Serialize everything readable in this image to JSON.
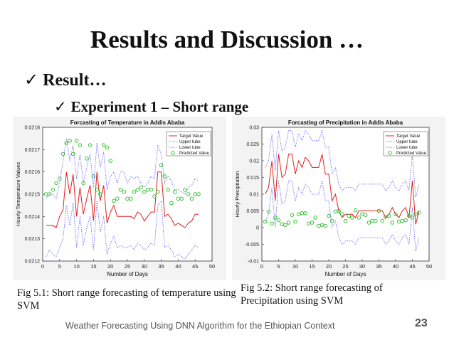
{
  "slide": {
    "title": "Results and Discussion …",
    "bullet1": "Result…",
    "bullet2": "Experiment 1 – Short range",
    "check": "✓",
    "caption1": "Fig 5.1: Short range forecasting of temperature using SVM",
    "caption2": "Fig 5.2: Short range forecasting of Precipitation using SVM",
    "footer": "Weather Forecasting Using DNN Algorithm for the Ethiopian Context",
    "page_number": "23"
  },
  "colors": {
    "target": "#e02020",
    "upper": "#4a4aff",
    "lower": "#4a4aff",
    "predicted": "#22bb22"
  },
  "chart_data": [
    {
      "type": "line",
      "title": "Forcasting of Temperature in Addis Ababa",
      "xlabel": "Number of Days",
      "ylabel": "Hourly Temperature Values",
      "xlim": [
        0,
        50
      ],
      "ylim": [
        0.0212,
        0.0218
      ],
      "xticks": [
        "0",
        "5",
        "10",
        "15",
        "20",
        "25",
        "30",
        "35",
        "40",
        "45",
        "50"
      ],
      "yticks": [
        "0.0212",
        "0.0213",
        "0.0214",
        "0.0215",
        "0.0216",
        "0.0217",
        "0.0218"
      ],
      "legend_position": "top-right",
      "grid": false,
      "x": [
        1,
        2,
        3,
        4,
        5,
        6,
        7,
        8,
        9,
        10,
        11,
        12,
        13,
        14,
        15,
        16,
        17,
        18,
        19,
        20,
        21,
        22,
        23,
        24,
        25,
        26,
        27,
        28,
        29,
        30,
        31,
        32,
        33,
        34,
        35,
        36,
        37,
        38,
        39,
        40,
        41,
        42,
        43,
        44,
        45,
        46
      ],
      "series": [
        {
          "name": "Target Value",
          "style": "solid",
          "values": [
            0.02136,
            0.02136,
            0.02136,
            0.02135,
            0.0214,
            0.02143,
            0.0216,
            0.0215,
            0.02159,
            0.0214,
            0.02153,
            0.02141,
            0.02148,
            0.02154,
            0.02138,
            0.0216,
            0.02147,
            0.02154,
            0.02137,
            0.02142,
            0.02145,
            0.0214,
            0.0214,
            0.0214,
            0.0214,
            0.0214,
            0.02139,
            0.02142,
            0.02141,
            0.02138,
            0.0214,
            0.02142,
            0.02142,
            0.0216,
            0.0216,
            0.0214,
            0.02141,
            0.02139,
            0.02136,
            0.02137,
            0.02136,
            0.02135,
            0.02137,
            0.02138,
            0.02141,
            0.02141
          ]
        },
        {
          "name": "Upper tube",
          "style": "dotted",
          "values": [
            0.02148,
            0.0215,
            0.0215,
            0.02148,
            0.02155,
            0.02165,
            0.02175,
            0.02165,
            0.02172,
            0.02157,
            0.02168,
            0.02155,
            0.02162,
            0.02168,
            0.02153,
            0.02173,
            0.02162,
            0.02169,
            0.02152,
            0.02158,
            0.0216,
            0.02155,
            0.0216,
            0.0216,
            0.02155,
            0.02158,
            0.02157,
            0.02158,
            0.02155,
            0.02153,
            0.02155,
            0.02158,
            0.02157,
            0.02172,
            0.02168,
            0.02155,
            0.02158,
            0.02156,
            0.02152,
            0.02152,
            0.02151,
            0.0215,
            0.02153,
            0.02154,
            0.02157,
            0.02156
          ]
        },
        {
          "name": "Lower tube",
          "style": "dotted",
          "values": [
            0.02122,
            0.02125,
            0.02123,
            0.02122,
            0.02126,
            0.0213,
            0.02145,
            0.02136,
            0.02146,
            0.02126,
            0.0214,
            0.02127,
            0.02135,
            0.0214,
            0.02125,
            0.02147,
            0.02133,
            0.0214,
            0.02123,
            0.02128,
            0.02131,
            0.02126,
            0.02127,
            0.02126,
            0.02126,
            0.02127,
            0.02125,
            0.02128,
            0.02127,
            0.02125,
            0.02126,
            0.02128,
            0.02127,
            0.02145,
            0.02147,
            0.02126,
            0.02127,
            0.02125,
            0.02122,
            0.02123,
            0.02122,
            0.02121,
            0.02123,
            0.02125,
            0.02127,
            0.02126
          ]
        },
        {
          "name": "Predicted Value",
          "style": "circle",
          "values": [
            0.0215,
            0.0215,
            0.02152,
            0.02155,
            0.02157,
            0.02168,
            0.02173,
            0.02174,
            0.02168,
            0.02174,
            0.02172,
            0.02155,
            0.02166,
            0.02172,
            0.02158,
            0.02152,
            0.0215,
            0.02172,
            0.02171,
            0.02165,
            0.02147,
            0.02148,
            0.02152,
            0.02151,
            0.02148,
            0.02148,
            0.02151,
            0.02152,
            0.02153,
            0.02151,
            0.02152,
            0.02152,
            0.02149,
            0.02151,
            0.02163,
            0.02158,
            0.02152,
            0.02146,
            0.02151,
            0.02148,
            0.02148,
            0.02152,
            0.0215,
            0.02148,
            0.0215,
            0.0215
          ]
        }
      ]
    },
    {
      "type": "line",
      "title": "Forcasting of Precipitation in Addis Ababa",
      "xlabel": "Number of Days",
      "ylabel": "Hourly Precipitation",
      "xlim": [
        0,
        50
      ],
      "ylim": [
        -0.01,
        0.03
      ],
      "xticks": [
        "0",
        "5",
        "10",
        "15",
        "20",
        "25",
        "30",
        "35",
        "40",
        "45",
        "50"
      ],
      "yticks": [
        "-0.01",
        "-0.005",
        "0",
        "0.005",
        "0.01",
        "0.015",
        "0.02",
        "0.025",
        "0.03"
      ],
      "legend_position": "top-right",
      "grid": false,
      "x": [
        1,
        2,
        3,
        4,
        5,
        6,
        7,
        8,
        9,
        10,
        11,
        12,
        13,
        14,
        15,
        16,
        17,
        18,
        19,
        20,
        21,
        22,
        23,
        24,
        25,
        26,
        27,
        28,
        29,
        30,
        31,
        32,
        33,
        34,
        35,
        36,
        37,
        38,
        39,
        40,
        41,
        42,
        43,
        44,
        45,
        46,
        47
      ],
      "series": [
        {
          "name": "Target Value",
          "style": "solid",
          "values": [
            0.01,
            0.012,
            0.02,
            0.008,
            0.022,
            0.015,
            0.016,
            0.022,
            0.022,
            0.016,
            0.02,
            0.018,
            0.021,
            0.02,
            0.018,
            0.018,
            0.018,
            0.022,
            0.016,
            0.016,
            0.008,
            0.01,
            0.005,
            0.003,
            0.004,
            0.004,
            0.004,
            0.003,
            0.005,
            0.005,
            0.005,
            0.005,
            0.005,
            0.005,
            0.005,
            0.005,
            0.003,
            0.004,
            0.006,
            0.004,
            0.003,
            0.005,
            0.006,
            0.003,
            0.014,
            0.001,
            0.005
          ]
        },
        {
          "name": "Upper tube",
          "style": "dotted",
          "values": [
            0.018,
            0.02,
            0.028,
            0.017,
            0.029,
            0.023,
            0.024,
            0.029,
            0.029,
            0.024,
            0.028,
            0.026,
            0.029,
            0.028,
            0.026,
            0.026,
            0.026,
            0.029,
            0.024,
            0.024,
            0.016,
            0.018,
            0.013,
            0.011,
            0.012,
            0.012,
            0.012,
            0.011,
            0.013,
            0.013,
            0.013,
            0.013,
            0.013,
            0.013,
            0.013,
            0.013,
            0.011,
            0.012,
            0.014,
            0.012,
            0.011,
            0.013,
            0.014,
            0.011,
            0.022,
            0.009,
            0.013
          ]
        },
        {
          "name": "Lower tube",
          "style": "dotted",
          "values": [
            0.002,
            0.004,
            0.012,
            0.0,
            0.014,
            0.007,
            0.008,
            0.014,
            0.014,
            0.008,
            0.012,
            0.01,
            0.013,
            0.012,
            0.01,
            0.01,
            0.01,
            0.014,
            0.008,
            0.008,
            0.0,
            0.002,
            -0.003,
            -0.005,
            -0.004,
            -0.004,
            -0.004,
            -0.005,
            -0.003,
            -0.003,
            -0.003,
            -0.003,
            -0.003,
            -0.003,
            -0.003,
            -0.003,
            -0.005,
            -0.004,
            -0.002,
            -0.004,
            -0.005,
            -0.003,
            -0.002,
            -0.005,
            0.006,
            -0.007,
            -0.003
          ]
        },
        {
          "name": "Predicted Value",
          "style": "circle",
          "values": [
            0.0018,
            0.0048,
            0.0012,
            0.003,
            0.0022,
            0.001,
            0.0008,
            0.0015,
            0.0038,
            0.0018,
            0.004,
            0.0043,
            0.0043,
            0.0012,
            0.0015,
            0.003,
            0.0005,
            0.0008,
            0.0005,
            0.0035,
            0.002,
            0.0048,
            0.005,
            0.004,
            0.002,
            0.0035,
            0.003,
            0.0052,
            0.003,
            0.004,
            0.0038,
            0.0015,
            0.002,
            0.002,
            0.005,
            0.002,
            0.0032,
            0.0035,
            0.0015,
            0.004,
            0.0018,
            0.002,
            0.0022,
            0.0035,
            0.003,
            0.004,
            0.0045
          ]
        }
      ]
    }
  ]
}
